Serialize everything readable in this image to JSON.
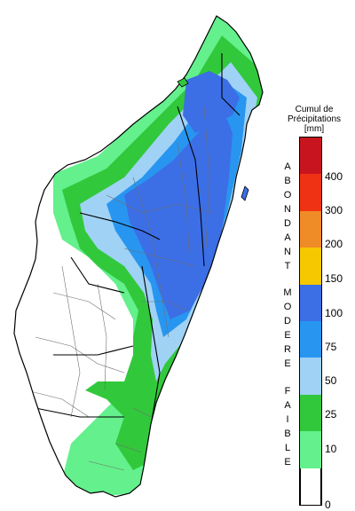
{
  "legend": {
    "title_line1": "Cumul de",
    "title_line2": "Précipitations",
    "unit": "[mm]",
    "ticks": [
      "400",
      "300",
      "200",
      "150",
      "100",
      "75",
      "50",
      "25",
      "10",
      "0"
    ],
    "categories": {
      "high": "ABONDANT",
      "mid": "MODERE",
      "low": "FAIBLE"
    },
    "colors": [
      "#c8141e",
      "#c8141e",
      "#f03214",
      "#f03214",
      "#f08c28",
      "#f08c28",
      "#f5c800",
      "#f5c800",
      "#3c6ee6",
      "#3c6ee6",
      "#2896f0",
      "#2896f0",
      "#a0d2f5",
      "#a0d2f5",
      "#32c83c",
      "#32c83c",
      "#64f08c",
      "#64f08c",
      "#ffffff",
      "#ffffff"
    ]
  },
  "map_colors": {
    "faible_10": "#64f08c",
    "faible_25": "#32c83c",
    "modere_50": "#a0d2f5",
    "modere_75": "#2896f0",
    "modere_100": "#3c6ee6",
    "none": "#ffffff",
    "border": "#000000",
    "subborder": "#6e6e6e"
  }
}
